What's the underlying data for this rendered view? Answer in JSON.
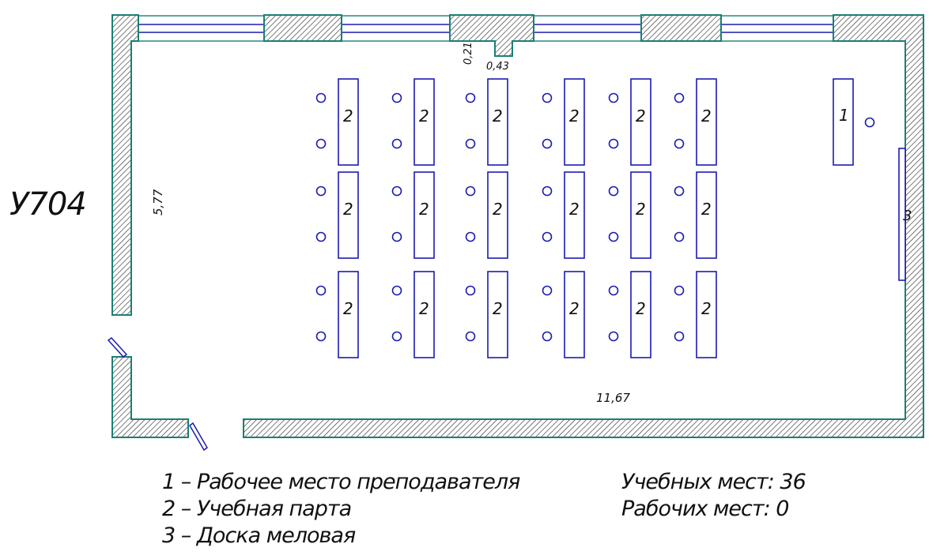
{
  "room": {
    "name": "У704"
  },
  "dimensions": {
    "width": "11,67",
    "depth": "5,77",
    "window_small_a": "0,21",
    "window_small_b": "0,43"
  },
  "furniture": {
    "teacher_desk_label": "1",
    "board_label": "3",
    "desk_label": "2",
    "desk_rows": 3,
    "desk_columns": 6
  },
  "legend": [
    "1 – Рабочее место преподавателя",
    "2 – Учебная парта",
    "3 – Доска меловая"
  ],
  "stats": {
    "study_places": "Учебных мест: 36",
    "work_places": "Рабочих мест: 0"
  },
  "colors": {
    "wall_stroke": "#1a7f74",
    "furniture": "#1c1cb0",
    "hatch": "#333333"
  }
}
